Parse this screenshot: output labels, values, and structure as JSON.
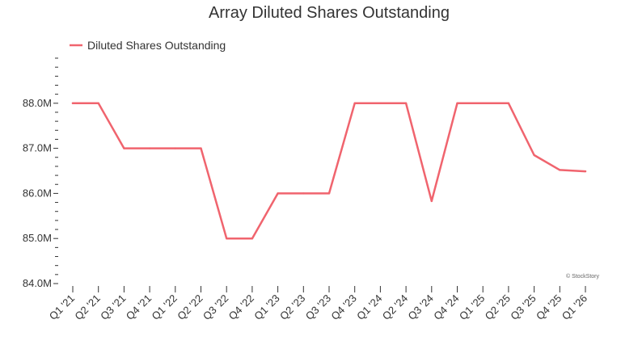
{
  "chart_data": {
    "type": "line",
    "title": "Array Diluted Shares Outstanding",
    "xlabel": "",
    "ylabel": "",
    "categories": [
      "Q1 '21",
      "Q2 '21",
      "Q3 '21",
      "Q4 '21",
      "Q1 '22",
      "Q2 '22",
      "Q3 '22",
      "Q4 '22",
      "Q1 '23",
      "Q2 '23",
      "Q3 '23",
      "Q4 '23",
      "Q1 '24",
      "Q2 '24",
      "Q3 '24",
      "Q4 '24",
      "Q1 '25",
      "Q2 '25",
      "Q3 '25",
      "Q4 '25",
      "Q1 '26"
    ],
    "series": [
      {
        "name": "Diluted Shares Outstanding",
        "color": "#f0646e",
        "values": [
          88.0,
          88.0,
          87.0,
          87.0,
          87.0,
          87.0,
          85.0,
          85.0,
          86.0,
          86.0,
          86.0,
          88.0,
          88.0,
          88.0,
          85.83,
          88.0,
          88.0,
          88.0,
          86.85,
          86.52,
          86.49
        ]
      }
    ],
    "ylim": [
      84.0,
      89.0
    ],
    "y_ticks": [
      {
        "value": 84.0,
        "label": "84.0M"
      },
      {
        "value": 85.0,
        "label": "85.0M"
      },
      {
        "value": 86.0,
        "label": "86.0M"
      },
      {
        "value": 87.0,
        "label": "87.0M"
      },
      {
        "value": 88.0,
        "label": "88.0M"
      }
    ],
    "grid": false,
    "legend_position": "top-left",
    "credit": "© StockStory"
  }
}
